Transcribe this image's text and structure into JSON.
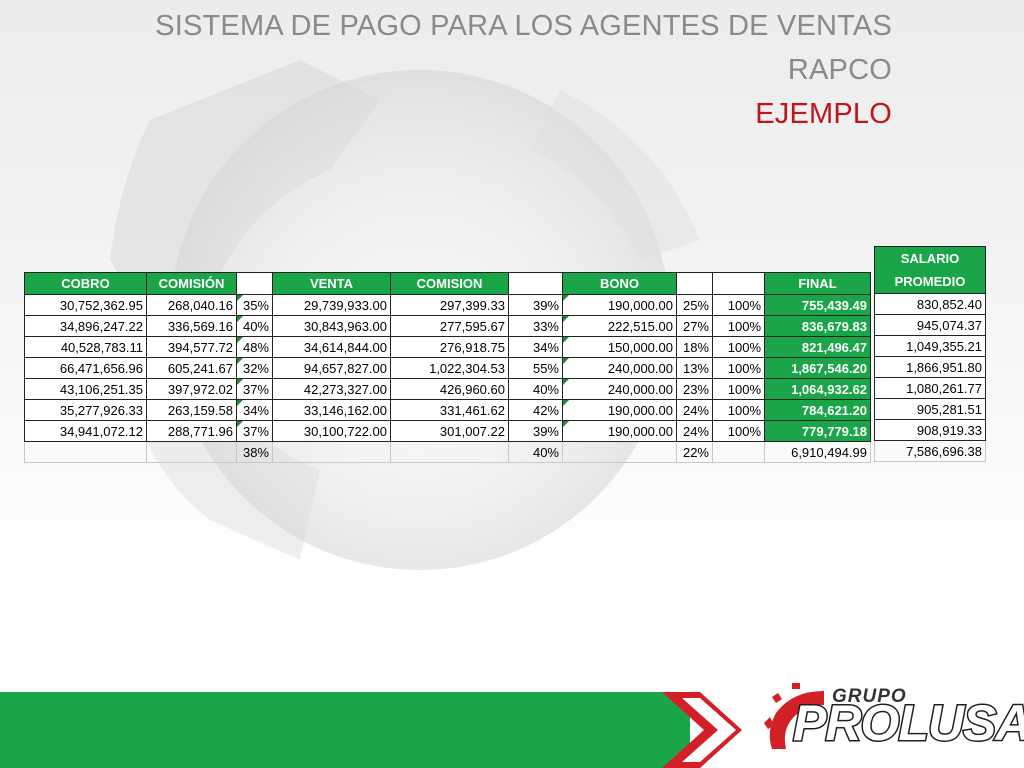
{
  "title": {
    "line1": "SISTEMA DE PAGO PARA LOS AGENTES DE VENTAS",
    "line2": "RAPCO",
    "line3": "EJEMPLO"
  },
  "colors": {
    "accent_green": "#1aa548",
    "title_gray": "#8a8a8a",
    "title_red": "#c0161b",
    "logo_red": "#d32027"
  },
  "headers": [
    "COBRO",
    "COMISIÓN",
    "",
    "VENTA",
    "COMISION",
    "",
    "BONO",
    "",
    "",
    "FINAL"
  ],
  "salary_header": {
    "line1": "SALARIO",
    "line2": "PROMEDIO"
  },
  "rows": [
    {
      "cobro": "30,752,362.95",
      "comision_cobro": "268,040.16",
      "pct_cobro": "35%",
      "venta": "29,739,933.00",
      "comision_venta": "297,399.33",
      "pct_venta": "39%",
      "bono": "190,000.00",
      "pct_bono": "25%",
      "pct_total": "100%",
      "final": "755,439.49",
      "salario": "830,852.40"
    },
    {
      "cobro": "34,896,247.22",
      "comision_cobro": "336,569.16",
      "pct_cobro": "40%",
      "venta": "30,843,963.00",
      "comision_venta": "277,595.67",
      "pct_venta": "33%",
      "bono": "222,515.00",
      "pct_bono": "27%",
      "pct_total": "100%",
      "final": "836,679.83",
      "salario": "945,074.37"
    },
    {
      "cobro": "40,528,783.11",
      "comision_cobro": "394,577.72",
      "pct_cobro": "48%",
      "venta": "34,614,844.00",
      "comision_venta": "276,918.75",
      "pct_venta": "34%",
      "bono": "150,000.00",
      "pct_bono": "18%",
      "pct_total": "100%",
      "final": "821,496.47",
      "salario": "1,049,355.21"
    },
    {
      "cobro": "66,471,656.96",
      "comision_cobro": "605,241.67",
      "pct_cobro": "32%",
      "venta": "94,657,827.00",
      "comision_venta": "1,022,304.53",
      "pct_venta": "55%",
      "bono": "240,000.00",
      "pct_bono": "13%",
      "pct_total": "100%",
      "final": "1,867,546.20",
      "salario": "1,866,951.80"
    },
    {
      "cobro": "43,106,251.35",
      "comision_cobro": "397,972.02",
      "pct_cobro": "37%",
      "venta": "42,273,327.00",
      "comision_venta": "426,960.60",
      "pct_venta": "40%",
      "bono": "240,000.00",
      "pct_bono": "23%",
      "pct_total": "100%",
      "final": "1,064,932.62",
      "salario": "1,080,261.77"
    },
    {
      "cobro": "35,277,926.33",
      "comision_cobro": "263,159.58",
      "pct_cobro": "34%",
      "venta": "33,146,162.00",
      "comision_venta": "331,461.62",
      "pct_venta": "42%",
      "bono": "190,000.00",
      "pct_bono": "24%",
      "pct_total": "100%",
      "final": "784,621.20",
      "salario": "905,281.51"
    },
    {
      "cobro": "34,941,072.12",
      "comision_cobro": "288,771.96",
      "pct_cobro": "37%",
      "venta": "30,100,722.00",
      "comision_venta": "301,007.22",
      "pct_venta": "39%",
      "bono": "190,000.00",
      "pct_bono": "24%",
      "pct_total": "100%",
      "final": "779,779.18",
      "salario": "908,919.33"
    }
  ],
  "totals": {
    "pct_cobro": "38%",
    "pct_venta": "40%",
    "pct_bono": "22%",
    "final": "6,910,494.99",
    "salario": "7,586,696.38"
  },
  "logo": {
    "group": "GRUPO",
    "name": "PROLUSA",
    "icon": "gear-icon"
  },
  "footer_icon": "double-chevron-icon"
}
